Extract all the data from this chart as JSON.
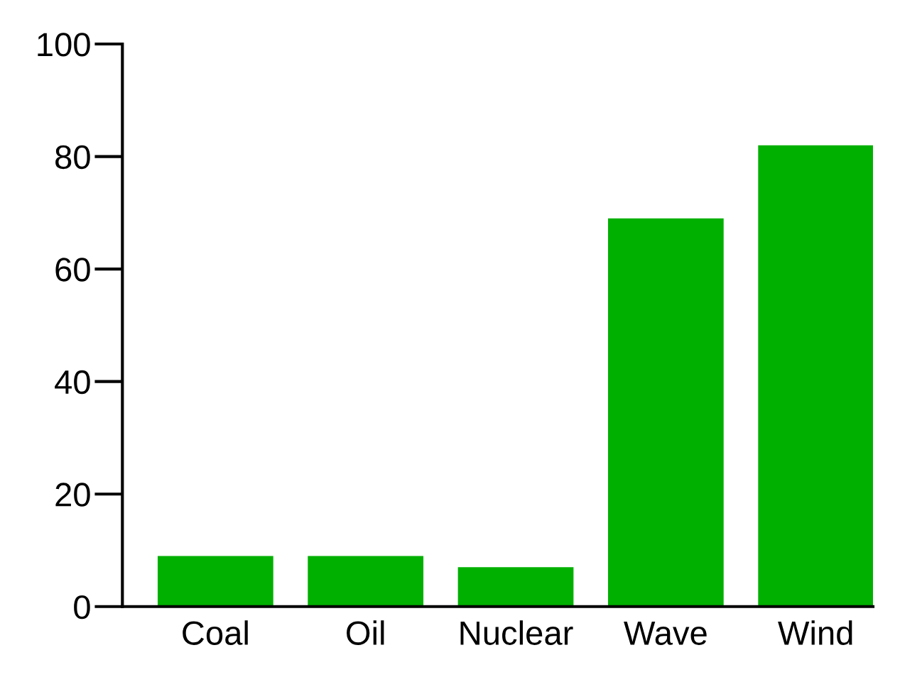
{
  "chart_data": {
    "type": "bar",
    "categories": [
      "Coal",
      "Oil",
      "Nuclear",
      "Wave",
      "Wind"
    ],
    "values": [
      9,
      9,
      7,
      69,
      82
    ],
    "color": "#00b000",
    "ylim": [
      0,
      100
    ],
    "yticks": [
      0,
      20,
      40,
      60,
      80,
      100
    ],
    "grid": false,
    "legend": false
  }
}
